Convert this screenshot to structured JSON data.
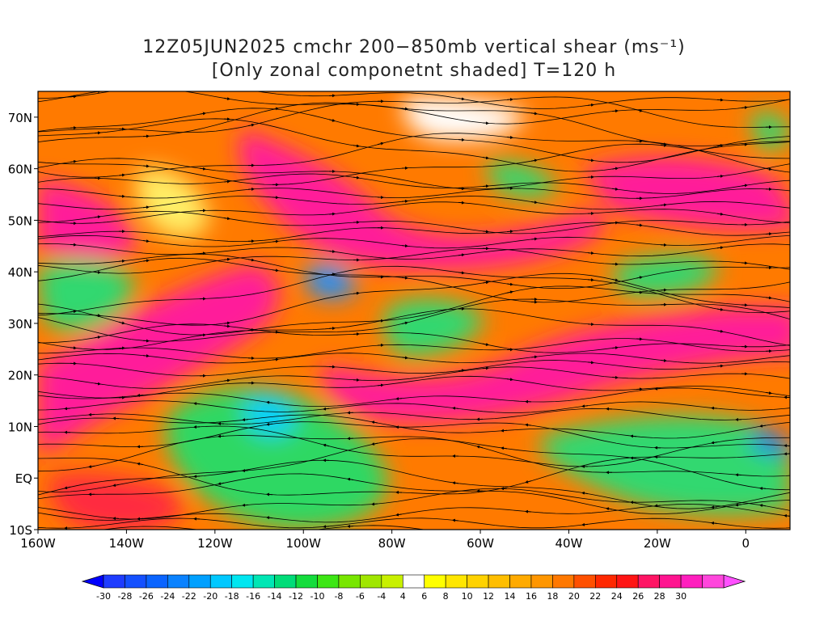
{
  "title": {
    "line1": "12Z05JUN2025 cmchr 200−850mb vertical shear (ms⁻¹)",
    "line2": "[Only zonal componetnt shaded] T=120 h"
  },
  "map": {
    "lon_range": [
      -160,
      10
    ],
    "lat_range": [
      -10,
      75
    ],
    "lat_labels": [
      {
        "lat": 70,
        "label": "70N"
      },
      {
        "lat": 60,
        "label": "60N"
      },
      {
        "lat": 50,
        "label": "50N"
      },
      {
        "lat": 40,
        "label": "40N"
      },
      {
        "lat": 30,
        "label": "30N"
      },
      {
        "lat": 20,
        "label": "20N"
      },
      {
        "lat": 10,
        "label": "10N"
      },
      {
        "lat": 0,
        "label": "EQ"
      },
      {
        "lat": -10,
        "label": "10S"
      }
    ],
    "lon_labels": [
      {
        "lon": -160,
        "label": "160W"
      },
      {
        "lon": -140,
        "label": "140W"
      },
      {
        "lon": -120,
        "label": "120W"
      },
      {
        "lon": -100,
        "label": "100W"
      },
      {
        "lon": -80,
        "label": "80W"
      },
      {
        "lon": -60,
        "label": "60W"
      },
      {
        "lon": -40,
        "label": "40W"
      },
      {
        "lon": -20,
        "label": "20W"
      },
      {
        "lon": 0,
        "label": "0"
      }
    ]
  },
  "colorbar": {
    "bins": [
      {
        "label": "-30",
        "color": "#1e3cff"
      },
      {
        "label": "-28",
        "color": "#1450ff"
      },
      {
        "label": "-26",
        "color": "#0a64ff"
      },
      {
        "label": "-24",
        "color": "#0a82ff"
      },
      {
        "label": "-22",
        "color": "#00a0ff"
      },
      {
        "label": "-20",
        "color": "#00c8ff"
      },
      {
        "label": "-18",
        "color": "#00e6f0"
      },
      {
        "label": "-16",
        "color": "#00e6b4"
      },
      {
        "label": "-14",
        "color": "#00dc78"
      },
      {
        "label": "-12",
        "color": "#14dc3c"
      },
      {
        "label": "-10",
        "color": "#3ce614"
      },
      {
        "label": "-8",
        "color": "#78e600"
      },
      {
        "label": "-6",
        "color": "#a0e600"
      },
      {
        "label": "-4",
        "color": "#c8f000"
      },
      {
        "label": "4",
        "color": "#ffffff"
      },
      {
        "label": "6",
        "color": "#ffff00"
      },
      {
        "label": "8",
        "color": "#ffe600"
      },
      {
        "label": "10",
        "color": "#ffd200"
      },
      {
        "label": "12",
        "color": "#ffbe00"
      },
      {
        "label": "14",
        "color": "#ffaa00"
      },
      {
        "label": "16",
        "color": "#ff9600"
      },
      {
        "label": "18",
        "color": "#ff7800"
      },
      {
        "label": "20",
        "color": "#ff5000"
      },
      {
        "label": "22",
        "color": "#ff2800"
      },
      {
        "label": "24",
        "color": "#ff1414"
      },
      {
        "label": "26",
        "color": "#ff1464"
      },
      {
        "label": "28",
        "color": "#ff1490"
      },
      {
        "label": "30",
        "color": "#ff1ebe"
      },
      {
        "label": "",
        "color": "#ff46dc"
      }
    ],
    "under_color": "#0000ff",
    "over_color": "#ff50ff"
  }
}
